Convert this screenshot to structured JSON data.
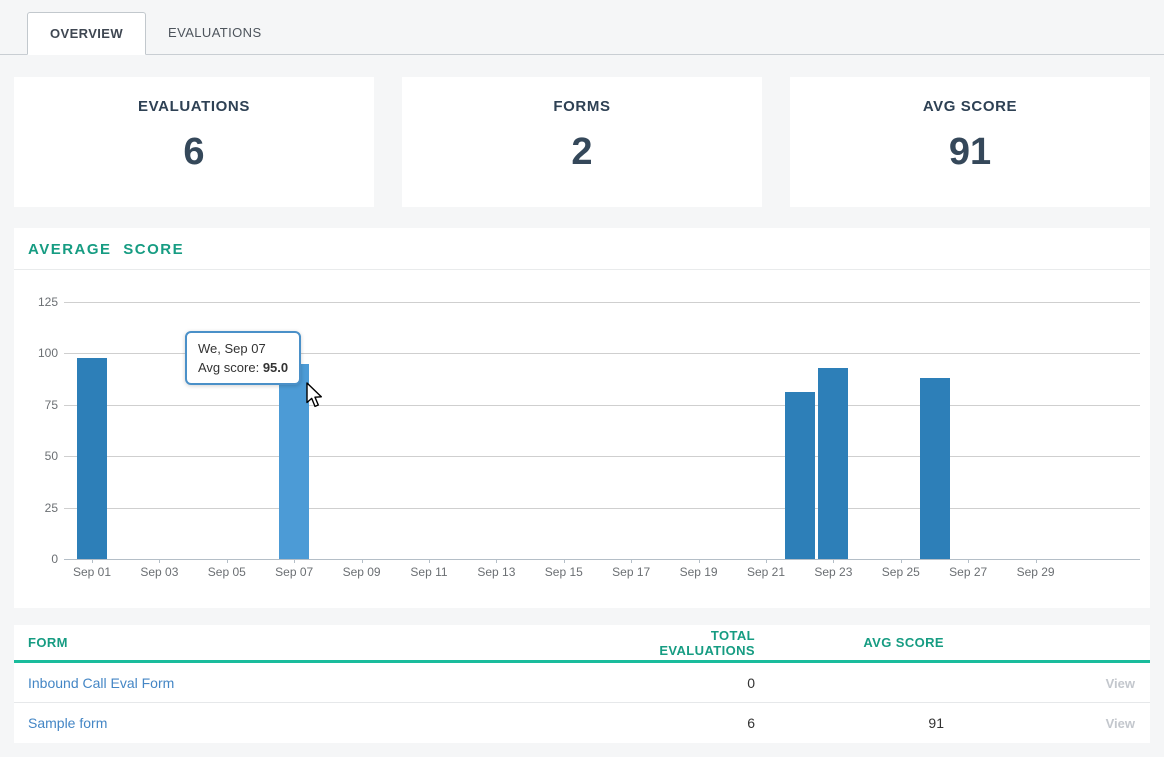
{
  "tabs": [
    {
      "label": "OVERVIEW",
      "active": true
    },
    {
      "label": "EVALUATIONS",
      "active": false
    }
  ],
  "stat_cards": [
    {
      "label": "EVALUATIONS",
      "value": "6"
    },
    {
      "label": "FORMS",
      "value": "2"
    },
    {
      "label": "AVG SCORE",
      "value": "91"
    }
  ],
  "chart_panel": {
    "title": "AVERAGE SCORE"
  },
  "chart_data": {
    "type": "bar",
    "title": "AVERAGE SCORE",
    "xlabel": "",
    "ylabel": "",
    "ylim": [
      0,
      125
    ],
    "y_ticks": [
      0,
      25,
      50,
      75,
      100,
      125
    ],
    "x_tick_labels": [
      "Sep 01",
      "Sep 03",
      "Sep 05",
      "Sep 07",
      "Sep 09",
      "Sep 11",
      "Sep 13",
      "Sep 15",
      "Sep 17",
      "Sep 19",
      "Sep 21",
      "Sep 23",
      "Sep 25",
      "Sep 27",
      "Sep 29"
    ],
    "grid": true,
    "legend": false,
    "bars": [
      {
        "date": "Sep 01",
        "day": 1,
        "value": 98,
        "state": "normal"
      },
      {
        "date": "Sep 07",
        "day": 7,
        "value": 95,
        "state": "hovered"
      },
      {
        "date": "Sep 22",
        "day": 22,
        "value": 81,
        "state": "normal"
      },
      {
        "date": "Sep 23",
        "day": 23,
        "value": 93,
        "state": "normal"
      },
      {
        "date": "Sep 26",
        "day": 26,
        "value": 88,
        "state": "normal"
      }
    ],
    "bar_color": "#2d7fb8",
    "bar_hover_color": "#4c9bd6"
  },
  "tooltip": {
    "date_line": "We, Sep 07",
    "score_label": "Avg score:",
    "score_value": "95.0"
  },
  "table": {
    "columns": [
      "FORM",
      "TOTAL EVALUATIONS",
      "AVG SCORE",
      ""
    ],
    "rows": [
      {
        "form": "Inbound Call Eval Form",
        "total_evaluations": "0",
        "avg_score": "",
        "action": "View"
      },
      {
        "form": "Sample form",
        "total_evaluations": "6",
        "avg_score": "91",
        "action": "View"
      }
    ]
  },
  "colors": {
    "accent_teal": "#1abc9c",
    "heading_teal": "#169c82",
    "bar_blue": "#2d7fb8",
    "bar_blue_hover": "#4c9bd6",
    "link_blue": "#4486c5",
    "navy_text": "#35485a",
    "page_background": "#f5f6f7"
  }
}
